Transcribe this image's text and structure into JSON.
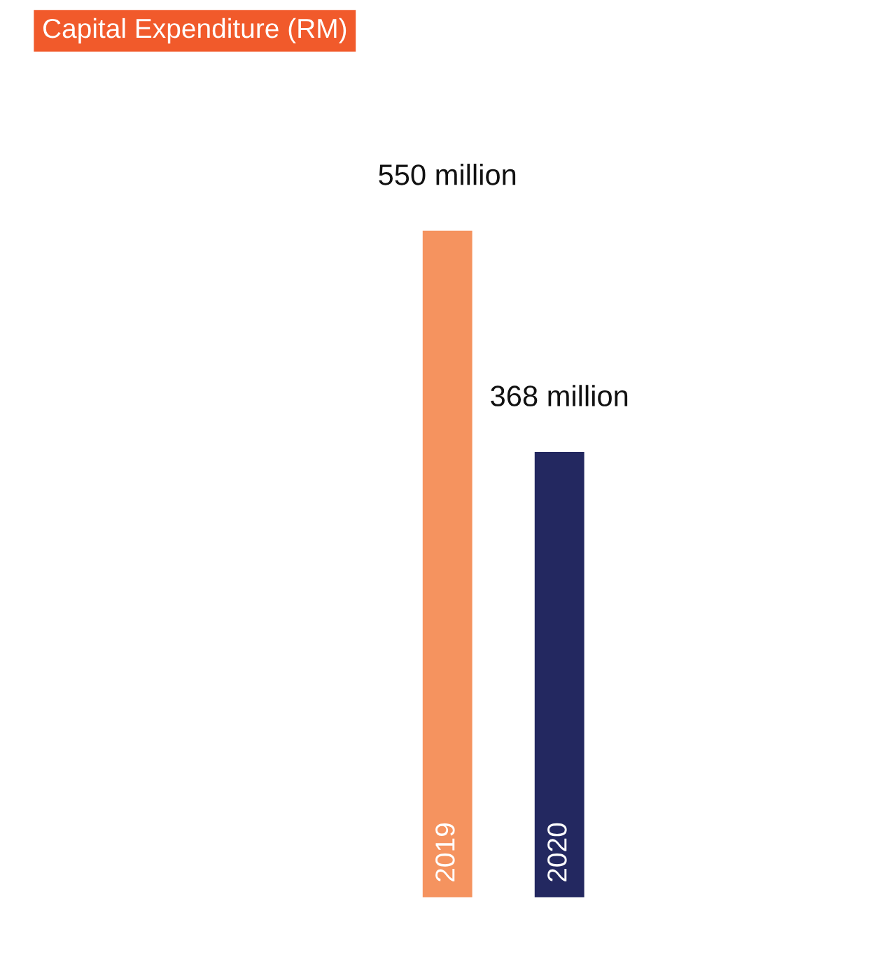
{
  "chart_data": {
    "type": "bar",
    "title": "Capital Expenditure (RM)",
    "categories": [
      "2019",
      "2020"
    ],
    "values": [
      550,
      368
    ],
    "colors": [
      "#f5935f",
      "#232860"
    ],
    "value_labels": [
      "550 million",
      "368 million"
    ]
  }
}
